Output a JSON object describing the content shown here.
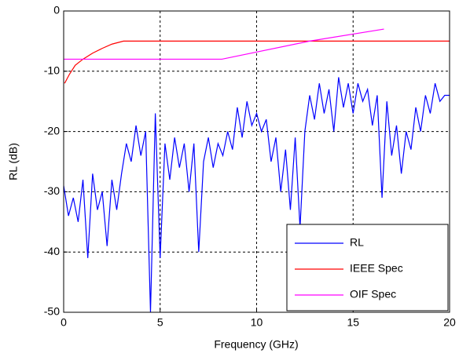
{
  "chart_data": {
    "type": "line",
    "xlabel": "Frequency (GHz)",
    "ylabel": "RL (dB)",
    "xlim": [
      0,
      20
    ],
    "ylim": [
      -50,
      0
    ],
    "xticks": [
      0,
      5,
      10,
      15,
      20
    ],
    "yticks": [
      -50,
      -40,
      -30,
      -20,
      -10,
      0
    ],
    "grid": true,
    "legend": "lower right",
    "series": [
      {
        "name": "RL",
        "color": "#0000ff",
        "x": [
          0,
          0.25,
          0.5,
          0.75,
          1,
          1.25,
          1.5,
          1.75,
          2,
          2.25,
          2.5,
          2.75,
          3,
          3.25,
          3.5,
          3.75,
          4,
          4.25,
          4.5,
          4.75,
          5,
          5.25,
          5.5,
          5.75,
          6,
          6.25,
          6.5,
          6.75,
          7,
          7.25,
          7.5,
          7.75,
          8,
          8.25,
          8.5,
          8.75,
          9,
          9.25,
          9.5,
          9.75,
          10,
          10.25,
          10.5,
          10.75,
          11,
          11.25,
          11.5,
          11.75,
          12,
          12.25,
          12.5,
          12.75,
          13,
          13.25,
          13.5,
          13.75,
          14,
          14.25,
          14.5,
          14.75,
          15,
          15.25,
          15.5,
          15.75,
          16,
          16.25,
          16.5,
          16.75,
          17,
          17.25,
          17.5,
          17.75,
          18,
          18.25,
          18.5,
          18.75,
          19,
          19.25,
          19.5,
          19.75,
          20
        ],
        "values": [
          -29,
          -34,
          -31,
          -35,
          -28,
          -41,
          -27,
          -33,
          -30,
          -39,
          -28,
          -33,
          -27,
          -22,
          -25,
          -19,
          -24,
          -20,
          -50,
          -17,
          -41,
          -22,
          -28,
          -21,
          -26,
          -22,
          -30,
          -22,
          -40,
          -25,
          -21,
          -26,
          -22,
          -24,
          -20,
          -23,
          -16,
          -21,
          -15,
          -19,
          -17,
          -20,
          -18,
          -25,
          -21,
          -30,
          -23,
          -33,
          -21,
          -36,
          -20,
          -14,
          -18,
          -12,
          -17,
          -13,
          -20,
          -11,
          -16,
          -12,
          -17,
          -12,
          -15,
          -13,
          -19,
          -14,
          -31,
          -15,
          -24,
          -19,
          -27,
          -20,
          -23,
          -16,
          -20,
          -14,
          -17,
          -12,
          -15,
          -14,
          -14
        ]
      },
      {
        "name": "IEEE Spec",
        "color": "#ff0000",
        "x": [
          0.05,
          0.3,
          0.6,
          1,
          1.5,
          2,
          2.5,
          3.1,
          20
        ],
        "values": [
          -12,
          -10.5,
          -9,
          -8,
          -7,
          -6.2,
          -5.5,
          -5,
          -5
        ]
      },
      {
        "name": "OIF Spec",
        "color": "#ff00ff",
        "x": [
          0,
          8.2,
          12.75,
          16.6
        ],
        "values": [
          -8,
          -8,
          -5,
          -3
        ]
      }
    ]
  }
}
